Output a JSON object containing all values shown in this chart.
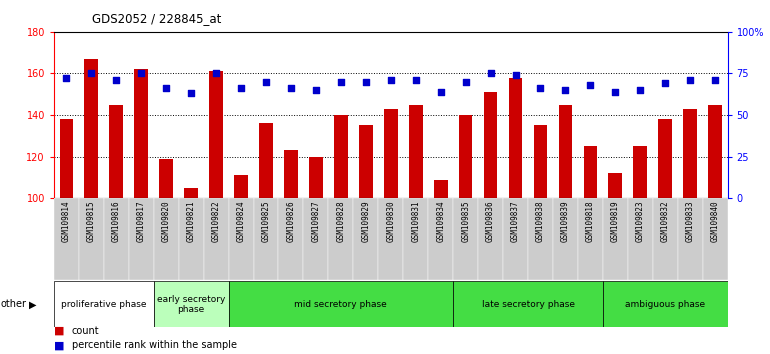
{
  "title": "GDS2052 / 228845_at",
  "samples": [
    "GSM109814",
    "GSM109815",
    "GSM109816",
    "GSM109817",
    "GSM109820",
    "GSM109821",
    "GSM109822",
    "GSM109824",
    "GSM109825",
    "GSM109826",
    "GSM109827",
    "GSM109828",
    "GSM109829",
    "GSM109830",
    "GSM109831",
    "GSM109834",
    "GSM109835",
    "GSM109836",
    "GSM109837",
    "GSM109838",
    "GSM109839",
    "GSM109818",
    "GSM109819",
    "GSM109823",
    "GSM109832",
    "GSM109833",
    "GSM109840"
  ],
  "counts": [
    138,
    167,
    145,
    162,
    119,
    105,
    161,
    111,
    136,
    123,
    120,
    140,
    135,
    143,
    145,
    109,
    140,
    151,
    158,
    135,
    145,
    125,
    112,
    125,
    138,
    143,
    145
  ],
  "percentile_pct": [
    72,
    75,
    71,
    75,
    66,
    63,
    75,
    66,
    70,
    66,
    65,
    70,
    70,
    71,
    71,
    64,
    70,
    75,
    74,
    66,
    65,
    68,
    64,
    65,
    69,
    71,
    71
  ],
  "ylim_left": [
    100,
    180
  ],
  "ylim_right": [
    0,
    100
  ],
  "yticks_left": [
    100,
    120,
    140,
    160,
    180
  ],
  "yticks_right": [
    0,
    25,
    50,
    75,
    100
  ],
  "ytick_labels_right": [
    "0",
    "25",
    "50",
    "75",
    "100%"
  ],
  "bar_color": "#cc0000",
  "scatter_color": "#0000cc",
  "phase_data": [
    {
      "label": "proliferative phase",
      "start": 0,
      "end": 4,
      "color": "#ffffff"
    },
    {
      "label": "early secretory\nphase",
      "start": 4,
      "end": 7,
      "color": "#bbffbb"
    },
    {
      "label": "mid secretory phase",
      "start": 7,
      "end": 16,
      "color": "#44dd44"
    },
    {
      "label": "late secretory phase",
      "start": 16,
      "end": 22,
      "color": "#44dd44"
    },
    {
      "label": "ambiguous phase",
      "start": 22,
      "end": 27,
      "color": "#44dd44"
    }
  ],
  "other_label": "other",
  "legend_count_label": "count",
  "legend_pct_label": "percentile rank within the sample",
  "tick_bg_color": "#cccccc"
}
